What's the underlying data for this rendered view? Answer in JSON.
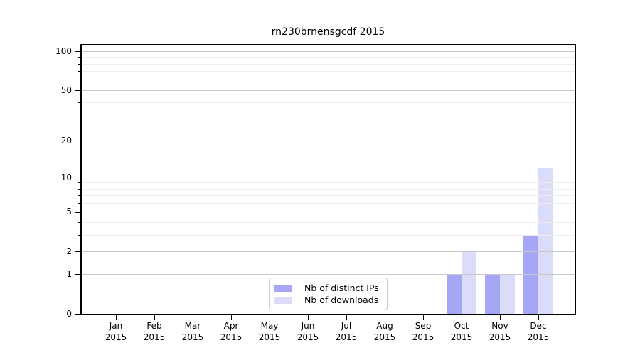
{
  "chart_data": {
    "type": "bar",
    "title": "rn230brnensgcdf 2015",
    "categories": [
      "Jan 2015",
      "Feb 2015",
      "Mar 2015",
      "Apr 2015",
      "May 2015",
      "Jun 2015",
      "Jul 2015",
      "Aug 2015",
      "Sep 2015",
      "Oct 2015",
      "Nov 2015",
      "Dec 2015"
    ],
    "series": [
      {
        "name": "Nb of distinct IPs",
        "color": "#a6a6f7",
        "values": [
          0,
          0,
          0,
          0,
          0,
          0,
          0,
          0,
          0,
          1,
          1,
          3
        ]
      },
      {
        "name": "Nb of downloads",
        "color": "#dbdbfa",
        "values": [
          0,
          0,
          0,
          0,
          0,
          0,
          0,
          0,
          0,
          2,
          1,
          12
        ]
      }
    ],
    "xlabel": "",
    "ylabel": "",
    "yscale": "log1p",
    "ylim": [
      0,
      100
    ],
    "yticks_labeled": [
      0,
      1,
      2,
      5,
      10,
      20,
      50,
      100
    ],
    "yticks_minor": [
      3,
      4,
      6,
      7,
      8,
      9,
      30,
      40,
      60,
      70,
      80,
      90
    ],
    "gridline_values": [
      1,
      2,
      3,
      4,
      5,
      6,
      7,
      8,
      9,
      10,
      20,
      30,
      40,
      50,
      60,
      70,
      80,
      90,
      100
    ],
    "grid": "horizontal",
    "legend_position": "lower-center-inside",
    "colors": {
      "major_grid": "#c8c8c8",
      "minor_grid": "#ededed",
      "spine": "#000000",
      "background": "#ffffff"
    }
  }
}
